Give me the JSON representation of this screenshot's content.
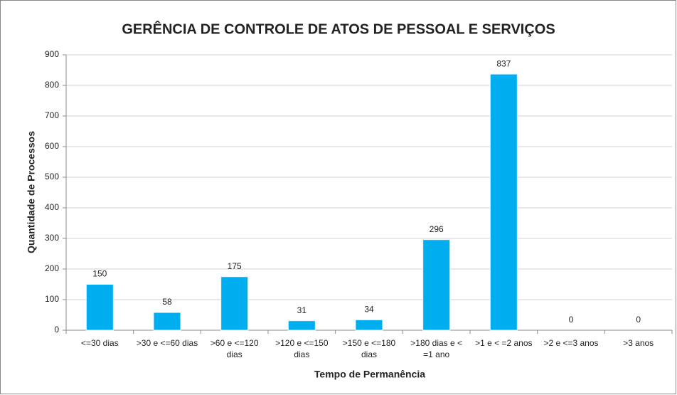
{
  "chart_data": {
    "type": "bar",
    "title": "GERÊNCIA DE CONTROLE DE ATOS DE PESSOAL E SERVIÇOS",
    "x_label": "Tempo de Permanência",
    "y_label": "Quantidade de Processos",
    "categories": [
      "<=30 dias",
      ">30 e <=60 dias",
      ">60 e <=120 dias",
      ">120 e <=150 dias",
      ">150 e <=180 dias",
      ">180 dias e < =1 ano",
      ">1 e < =2 anos",
      ">2 e <=3 anos",
      ">3 anos"
    ],
    "values": [
      150,
      58,
      175,
      31,
      34,
      296,
      837,
      0,
      0
    ],
    "color": "#00aeef",
    "ylim": [
      0,
      900
    ],
    "yticks": [
      0,
      100,
      200,
      300,
      400,
      500,
      600,
      700,
      800,
      900
    ],
    "grid": true
  }
}
